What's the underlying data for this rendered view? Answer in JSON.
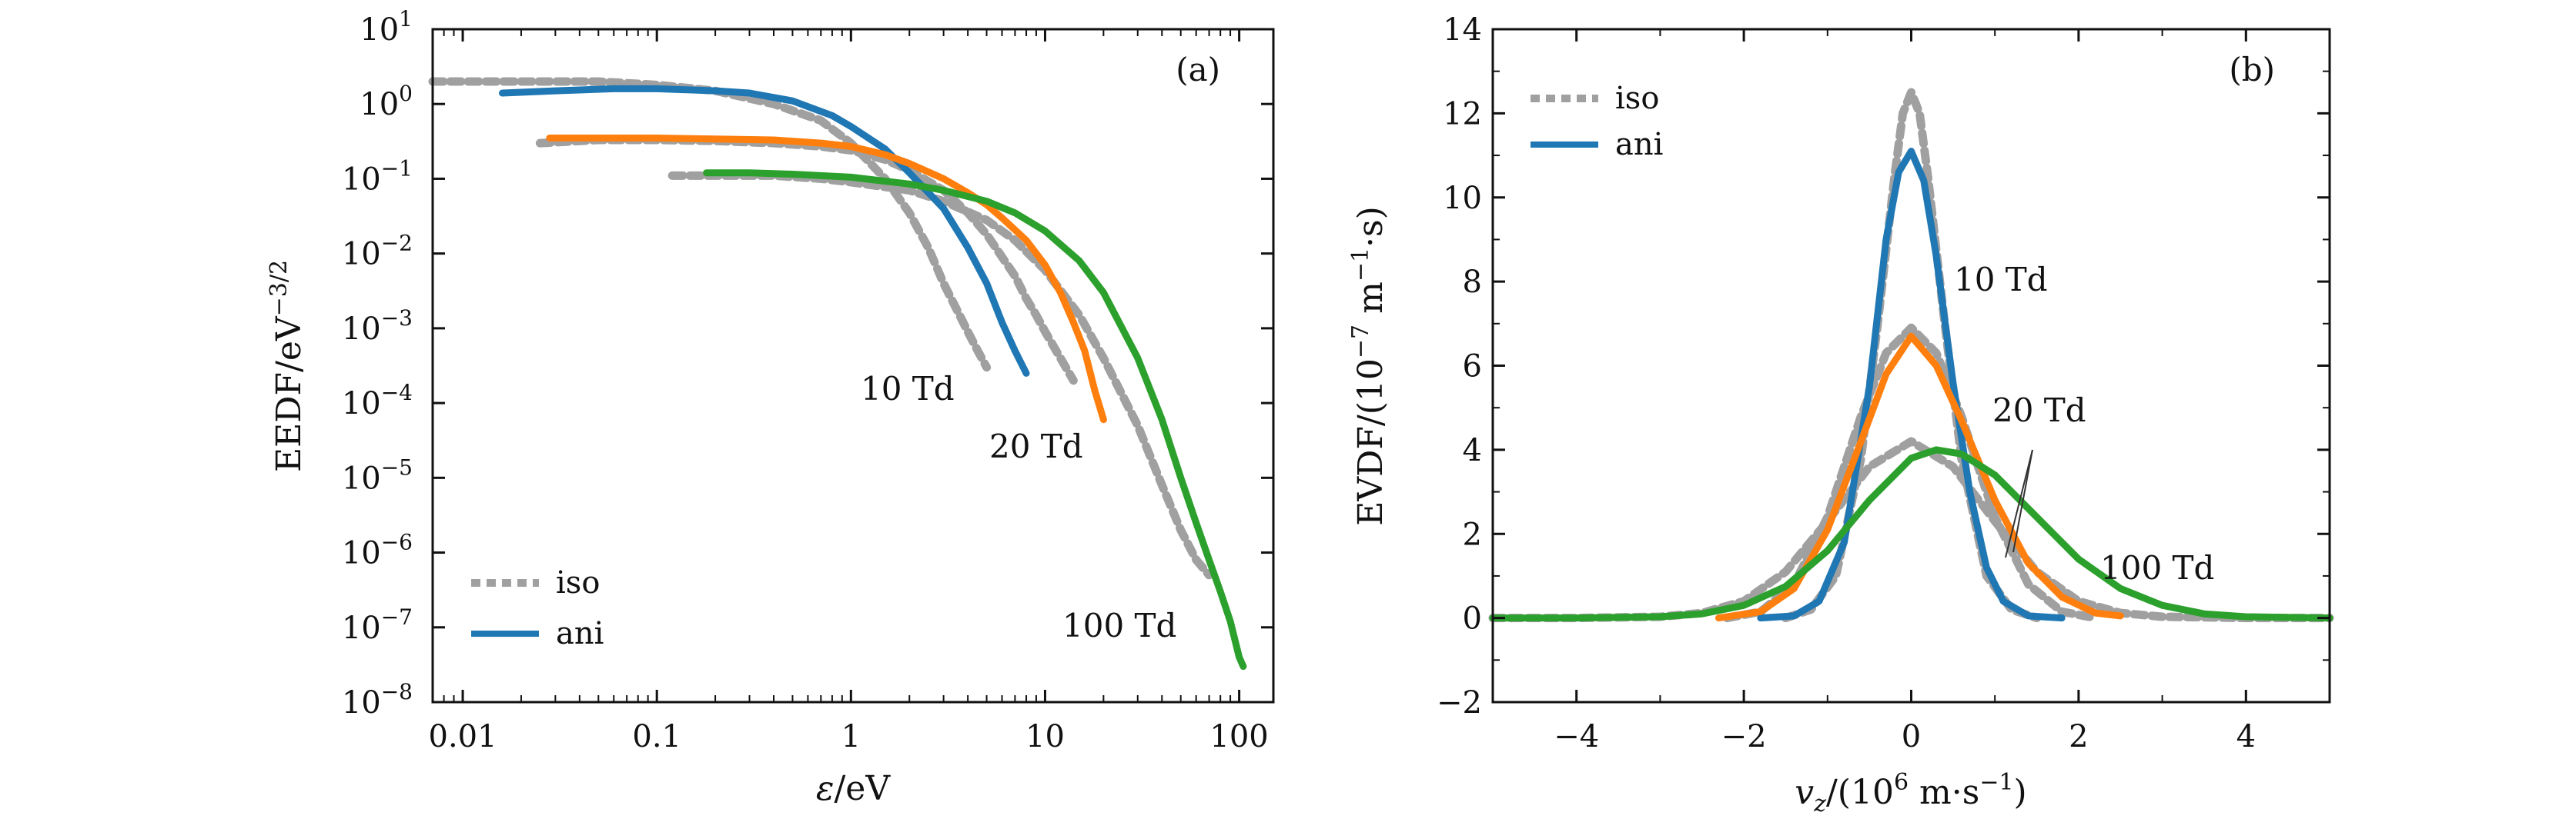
{
  "chart_data": [
    {
      "type": "line",
      "panel": "(a)",
      "xlabel": "ε/eV",
      "ylabel": "EEDF/eV⁻³ᐟ²",
      "xscale": "log",
      "yscale": "log",
      "xlim": [
        0.007,
        150
      ],
      "ylim": [
        1e-08,
        10
      ],
      "xticks": [
        {
          "v": 0.01,
          "label": "0.01"
        },
        {
          "v": 0.1,
          "label": "0.1"
        },
        {
          "v": 1,
          "label": "1"
        },
        {
          "v": 10,
          "label": "10"
        },
        {
          "v": 100,
          "label": "100"
        }
      ],
      "yticks": [
        {
          "v": 10.0,
          "label": "10",
          "exp": "1"
        },
        {
          "v": 1.0,
          "label": "10",
          "exp": "0"
        },
        {
          "v": 0.1,
          "label": "10",
          "exp": "−1"
        },
        {
          "v": 0.01,
          "label": "10",
          "exp": "−2"
        },
        {
          "v": 0.001,
          "label": "10",
          "exp": "−3"
        },
        {
          "v": 0.0001,
          "label": "10",
          "exp": "−4"
        },
        {
          "v": 1e-05,
          "label": "10",
          "exp": "−5"
        },
        {
          "v": 1e-06,
          "label": "10",
          "exp": "−6"
        },
        {
          "v": 1e-07,
          "label": "10",
          "exp": "−7"
        },
        {
          "v": 1e-08,
          "label": "10",
          "exp": "−8"
        }
      ],
      "legend": [
        {
          "label": "iso",
          "style": "dotted",
          "color": "#a0a0a0"
        },
        {
          "label": "ani",
          "style": "solid",
          "color": "#1f77b4"
        }
      ],
      "annotations": [
        {
          "text": "10 Td",
          "x": 3.5,
          "y": 0.00015
        },
        {
          "text": "20 Td",
          "x": 18,
          "y": 1.6e-05
        },
        {
          "text": "100 Td",
          "x": 48,
          "y": 1.2e-07
        }
      ],
      "series": [
        {
          "name": "iso 10 Td",
          "color": "#a0a0a0",
          "style": "dotted",
          "x": [
            0.007,
            0.02,
            0.05,
            0.1,
            0.2,
            0.4,
            0.7,
            1.0,
            1.5,
            2.0,
            2.5,
            3.0,
            3.5,
            4.0,
            4.5,
            5.0
          ],
          "y": [
            2.0,
            2.0,
            2.0,
            1.8,
            1.5,
            1.0,
            0.6,
            0.3,
            0.1,
            0.035,
            0.012,
            0.004,
            0.0018,
            0.0009,
            0.0005,
            0.0003
          ]
        },
        {
          "name": "ani 10 Td",
          "color": "#1f77b4",
          "style": "solid",
          "x": [
            0.016,
            0.03,
            0.06,
            0.1,
            0.2,
            0.3,
            0.5,
            0.8,
            1.0,
            1.5,
            2.0,
            3.0,
            4.0,
            5.0,
            6.0,
            7.0,
            8.0
          ],
          "y": [
            1.4,
            1.5,
            1.6,
            1.6,
            1.5,
            1.4,
            1.1,
            0.7,
            0.5,
            0.25,
            0.12,
            0.04,
            0.012,
            0.004,
            0.0012,
            0.0005,
            0.00025
          ]
        },
        {
          "name": "iso 20 Td",
          "color": "#a0a0a0",
          "style": "dotted",
          "x": [
            0.025,
            0.05,
            0.1,
            0.2,
            0.4,
            0.7,
            1.0,
            1.5,
            2.0,
            3.0,
            4.0,
            5.0,
            6.0,
            7.0,
            8.0,
            9.0,
            10.0,
            12.0,
            14.0
          ],
          "y": [
            0.3,
            0.33,
            0.33,
            0.32,
            0.3,
            0.27,
            0.24,
            0.18,
            0.13,
            0.07,
            0.035,
            0.018,
            0.009,
            0.005,
            0.0025,
            0.0015,
            0.0009,
            0.0004,
            0.0002
          ]
        },
        {
          "name": "ani 20 Td",
          "color": "#ff7f0e",
          "style": "solid",
          "x": [
            0.028,
            0.05,
            0.1,
            0.2,
            0.4,
            0.7,
            1.0,
            1.5,
            2.0,
            3.0,
            4.0,
            5.0,
            6.0,
            8.0,
            10.0,
            12.0,
            14.0,
            16.0,
            18.0,
            20.0
          ],
          "y": [
            0.35,
            0.35,
            0.35,
            0.34,
            0.33,
            0.3,
            0.27,
            0.21,
            0.16,
            0.1,
            0.065,
            0.045,
            0.03,
            0.015,
            0.007,
            0.003,
            0.0012,
            0.0005,
            0.00015,
            6e-05
          ]
        },
        {
          "name": "iso 100 Td",
          "color": "#a0a0a0",
          "style": "dotted",
          "x": [
            0.12,
            0.2,
            0.4,
            0.7,
            1.0,
            2.0,
            3.0,
            5.0,
            7.0,
            10.0,
            15.0,
            20.0,
            30.0,
            40.0,
            50.0,
            60.0,
            70.0
          ],
          "y": [
            0.11,
            0.11,
            0.11,
            0.1,
            0.09,
            0.07,
            0.05,
            0.028,
            0.015,
            0.006,
            0.0015,
            0.0004,
            5e-05,
            8e-06,
            2e-06,
            8e-07,
            5e-07
          ]
        },
        {
          "name": "ani 100 Td",
          "color": "#2ca02c",
          "style": "solid",
          "x": [
            0.18,
            0.3,
            0.5,
            1.0,
            2.0,
            3.0,
            5.0,
            7.0,
            10.0,
            15.0,
            20.0,
            30.0,
            40.0,
            50.0,
            60.0,
            70.0,
            80.0,
            90.0,
            100.0,
            105.0
          ],
          "y": [
            0.12,
            0.12,
            0.115,
            0.105,
            0.085,
            0.07,
            0.05,
            0.035,
            0.02,
            0.008,
            0.003,
            0.0004,
            6e-05,
            1e-05,
            2.5e-06,
            8e-07,
            3e-07,
            1.2e-07,
            4e-08,
            3e-08
          ]
        }
      ]
    },
    {
      "type": "line",
      "panel": "(b)",
      "xlabel": "vz/(10⁶ m·s⁻¹)",
      "ylabel": "EVDF/(10⁻⁷ m⁻¹·s)",
      "xscale": "linear",
      "yscale": "linear",
      "xlim": [
        -5,
        5
      ],
      "ylim": [
        -2,
        14
      ],
      "xticks": [
        {
          "v": -4,
          "label": "−4"
        },
        {
          "v": -2,
          "label": "−2"
        },
        {
          "v": 0,
          "label": "0"
        },
        {
          "v": 2,
          "label": "2"
        },
        {
          "v": 4,
          "label": "4"
        }
      ],
      "yticks": [
        {
          "v": -2,
          "label": "−2"
        },
        {
          "v": 0,
          "label": "0"
        },
        {
          "v": 2,
          "label": "2"
        },
        {
          "v": 4,
          "label": "4"
        },
        {
          "v": 6,
          "label": "6"
        },
        {
          "v": 8,
          "label": "8"
        },
        {
          "v": 10,
          "label": "10"
        },
        {
          "v": 12,
          "label": "12"
        },
        {
          "v": 14,
          "label": "14"
        }
      ],
      "legend": [
        {
          "label": "iso",
          "style": "dotted",
          "color": "#a0a0a0"
        },
        {
          "label": "ani",
          "style": "solid",
          "color": "#1f77b4"
        }
      ],
      "annotations": [
        {
          "text": "10 Td",
          "x": 1.35,
          "y": 8.1
        },
        {
          "text": "20 Td",
          "x": 1.0,
          "y": 4.9
        },
        {
          "text": "100 Td",
          "x": 2.3,
          "y": 1.9
        }
      ],
      "series": [
        {
          "name": "iso 10 Td",
          "color": "#a0a0a0",
          "style": "dotted",
          "x": [
            -1.5,
            -1.2,
            -0.9,
            -0.6,
            -0.4,
            -0.2,
            -0.1,
            0.0,
            0.1,
            0.2,
            0.4,
            0.6,
            0.9,
            1.2,
            1.5
          ],
          "y": [
            0.0,
            0.2,
            1.0,
            3.8,
            7.0,
            10.5,
            12.0,
            12.5,
            12.0,
            10.5,
            7.0,
            3.8,
            1.0,
            0.2,
            0.0
          ]
        },
        {
          "name": "ani 10 Td",
          "color": "#1f77b4",
          "style": "solid",
          "x": [
            -1.8,
            -1.4,
            -1.1,
            -0.8,
            -0.5,
            -0.3,
            -0.15,
            0.0,
            0.15,
            0.3,
            0.5,
            0.7,
            0.9,
            1.1,
            1.4,
            1.8
          ],
          "y": [
            0.0,
            0.05,
            0.4,
            1.8,
            5.5,
            9.0,
            10.6,
            11.1,
            10.4,
            8.6,
            5.6,
            3.0,
            1.2,
            0.4,
            0.05,
            0.0
          ]
        },
        {
          "name": "iso 20 Td",
          "color": "#a0a0a0",
          "style": "dotted",
          "x": [
            -2.2,
            -1.8,
            -1.4,
            -1.0,
            -0.6,
            -0.3,
            0.0,
            0.3,
            0.6,
            1.0,
            1.4,
            1.8,
            2.2
          ],
          "y": [
            0.0,
            0.15,
            0.8,
            2.4,
            4.8,
            6.3,
            6.9,
            6.3,
            4.8,
            2.4,
            0.8,
            0.15,
            0.0
          ]
        },
        {
          "name": "ani 20 Td",
          "color": "#ff7f0e",
          "style": "solid",
          "x": [
            -2.3,
            -1.8,
            -1.4,
            -1.0,
            -0.6,
            -0.3,
            0.0,
            0.3,
            0.6,
            1.0,
            1.4,
            1.8,
            2.2,
            2.5
          ],
          "y": [
            0.0,
            0.15,
            0.7,
            2.1,
            4.2,
            5.8,
            6.7,
            6.0,
            4.7,
            2.8,
            1.3,
            0.5,
            0.12,
            0.05
          ]
        },
        {
          "name": "iso 100 Td",
          "color": "#a0a0a0",
          "style": "dotted",
          "x": [
            -5.0,
            -4.0,
            -3.0,
            -2.5,
            -2.0,
            -1.5,
            -1.0,
            -0.5,
            0.0,
            0.5,
            1.0,
            1.5,
            2.0,
            2.5,
            3.0,
            4.0,
            5.0
          ],
          "y": [
            0.0,
            0.0,
            0.03,
            0.12,
            0.4,
            1.1,
            2.3,
            3.6,
            4.2,
            3.6,
            2.3,
            1.1,
            0.4,
            0.12,
            0.03,
            0.0,
            0.0
          ]
        },
        {
          "name": "ani 100 Td",
          "color": "#2ca02c",
          "style": "solid",
          "x": [
            -5.0,
            -4.0,
            -3.0,
            -2.5,
            -2.0,
            -1.5,
            -1.0,
            -0.5,
            0.0,
            0.3,
            0.6,
            1.0,
            1.5,
            2.0,
            2.5,
            3.0,
            3.5,
            4.0,
            5.0
          ],
          "y": [
            0.0,
            0.0,
            0.03,
            0.1,
            0.3,
            0.75,
            1.6,
            2.8,
            3.8,
            4.0,
            3.9,
            3.4,
            2.4,
            1.4,
            0.7,
            0.3,
            0.1,
            0.03,
            0.0
          ]
        }
      ]
    }
  ]
}
